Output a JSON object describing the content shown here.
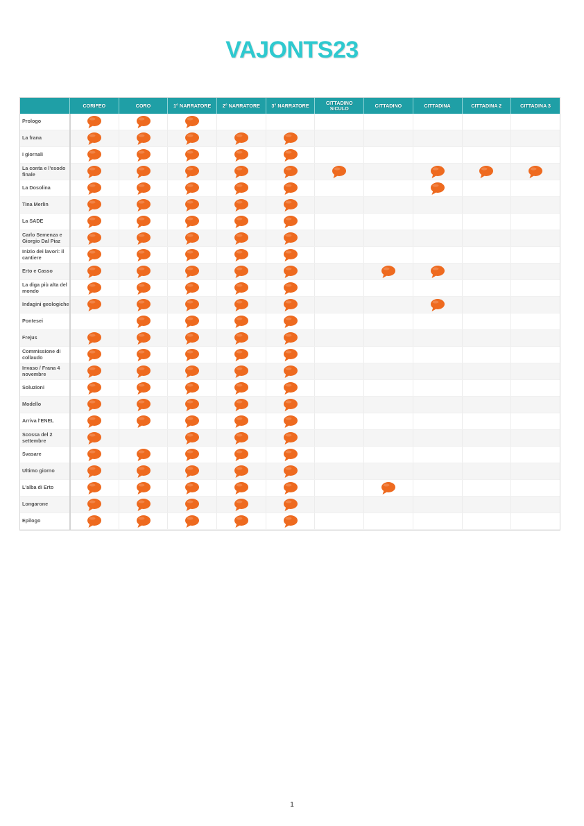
{
  "document": {
    "title": "VAJONTS23",
    "page_number": "1"
  },
  "colors": {
    "title": "#2ec9cf",
    "header_bg": "#1f9fa6",
    "bubble": "#ee6a1f"
  },
  "icon": "speech-bubble-icon",
  "table": {
    "columns": [
      "CORIFEO",
      "CORO",
      "1° NARRATORE",
      "2° NARRATORE",
      "3° NARRATORE",
      "CITTADINO SICULO",
      "CITTADINO",
      "CITTADINA",
      "CITTADINA 2",
      "CITTADINA 3"
    ],
    "rows": [
      {
        "label": "Prologo",
        "cells": [
          1,
          1,
          1,
          0,
          0,
          0,
          0,
          0,
          0,
          0
        ]
      },
      {
        "label": "La frana",
        "cells": [
          1,
          1,
          1,
          1,
          1,
          0,
          0,
          0,
          0,
          0
        ]
      },
      {
        "label": "I giornali",
        "cells": [
          1,
          1,
          1,
          1,
          1,
          0,
          0,
          0,
          0,
          0
        ]
      },
      {
        "label": "La conta e l'esodo finale",
        "cells": [
          1,
          1,
          1,
          1,
          1,
          1,
          0,
          1,
          1,
          1
        ]
      },
      {
        "label": "La Dosolina",
        "cells": [
          1,
          1,
          1,
          1,
          1,
          0,
          0,
          1,
          0,
          0
        ]
      },
      {
        "label": "Tina Merlin",
        "cells": [
          1,
          1,
          1,
          1,
          1,
          0,
          0,
          0,
          0,
          0
        ]
      },
      {
        "label": "La SADE",
        "cells": [
          1,
          1,
          1,
          1,
          1,
          0,
          0,
          0,
          0,
          0
        ]
      },
      {
        "label": "Carlo Semenza e Giorgio Dal Piaz",
        "cells": [
          1,
          1,
          1,
          1,
          1,
          0,
          0,
          0,
          0,
          0
        ]
      },
      {
        "label": "Inizio dei lavori: il cantiere",
        "cells": [
          1,
          1,
          1,
          1,
          1,
          0,
          0,
          0,
          0,
          0
        ]
      },
      {
        "label": "Erto e Casso",
        "cells": [
          1,
          1,
          1,
          1,
          1,
          0,
          1,
          1,
          0,
          0
        ]
      },
      {
        "label": "La diga più alta del mondo",
        "cells": [
          1,
          1,
          1,
          1,
          1,
          0,
          0,
          0,
          0,
          0
        ]
      },
      {
        "label": "Indagini geologiche",
        "cells": [
          1,
          1,
          1,
          1,
          1,
          0,
          0,
          1,
          0,
          0
        ]
      },
      {
        "label": "Pontesei",
        "cells": [
          0,
          1,
          1,
          1,
          1,
          0,
          0,
          0,
          0,
          0
        ]
      },
      {
        "label": "Frejus",
        "cells": [
          1,
          1,
          1,
          1,
          1,
          0,
          0,
          0,
          0,
          0
        ]
      },
      {
        "label": "Commissione di collaudo",
        "cells": [
          1,
          1,
          1,
          1,
          1,
          0,
          0,
          0,
          0,
          0
        ]
      },
      {
        "label": "Invaso / Frana 4 novembre",
        "cells": [
          1,
          1,
          1,
          1,
          1,
          0,
          0,
          0,
          0,
          0
        ]
      },
      {
        "label": "Soluzioni",
        "cells": [
          1,
          1,
          1,
          1,
          1,
          0,
          0,
          0,
          0,
          0
        ]
      },
      {
        "label": "Modello",
        "cells": [
          1,
          1,
          1,
          1,
          1,
          0,
          0,
          0,
          0,
          0
        ]
      },
      {
        "label": "Arriva l'ENEL",
        "cells": [
          1,
          1,
          1,
          1,
          1,
          0,
          0,
          0,
          0,
          0
        ]
      },
      {
        "label": "Scossa del 2 settembre",
        "cells": [
          1,
          0,
          1,
          1,
          1,
          0,
          0,
          0,
          0,
          0
        ]
      },
      {
        "label": "Svasare",
        "cells": [
          1,
          1,
          1,
          1,
          1,
          0,
          0,
          0,
          0,
          0
        ]
      },
      {
        "label": "Ultimo giorno",
        "cells": [
          1,
          1,
          1,
          1,
          1,
          0,
          0,
          0,
          0,
          0
        ]
      },
      {
        "label": "L'alba di Erto",
        "cells": [
          1,
          1,
          1,
          1,
          1,
          0,
          1,
          0,
          0,
          0
        ]
      },
      {
        "label": "Longarone",
        "cells": [
          1,
          1,
          1,
          1,
          1,
          0,
          0,
          0,
          0,
          0
        ]
      },
      {
        "label": "Epilogo",
        "cells": [
          1,
          1,
          1,
          1,
          1,
          0,
          0,
          0,
          0,
          0
        ]
      }
    ]
  }
}
